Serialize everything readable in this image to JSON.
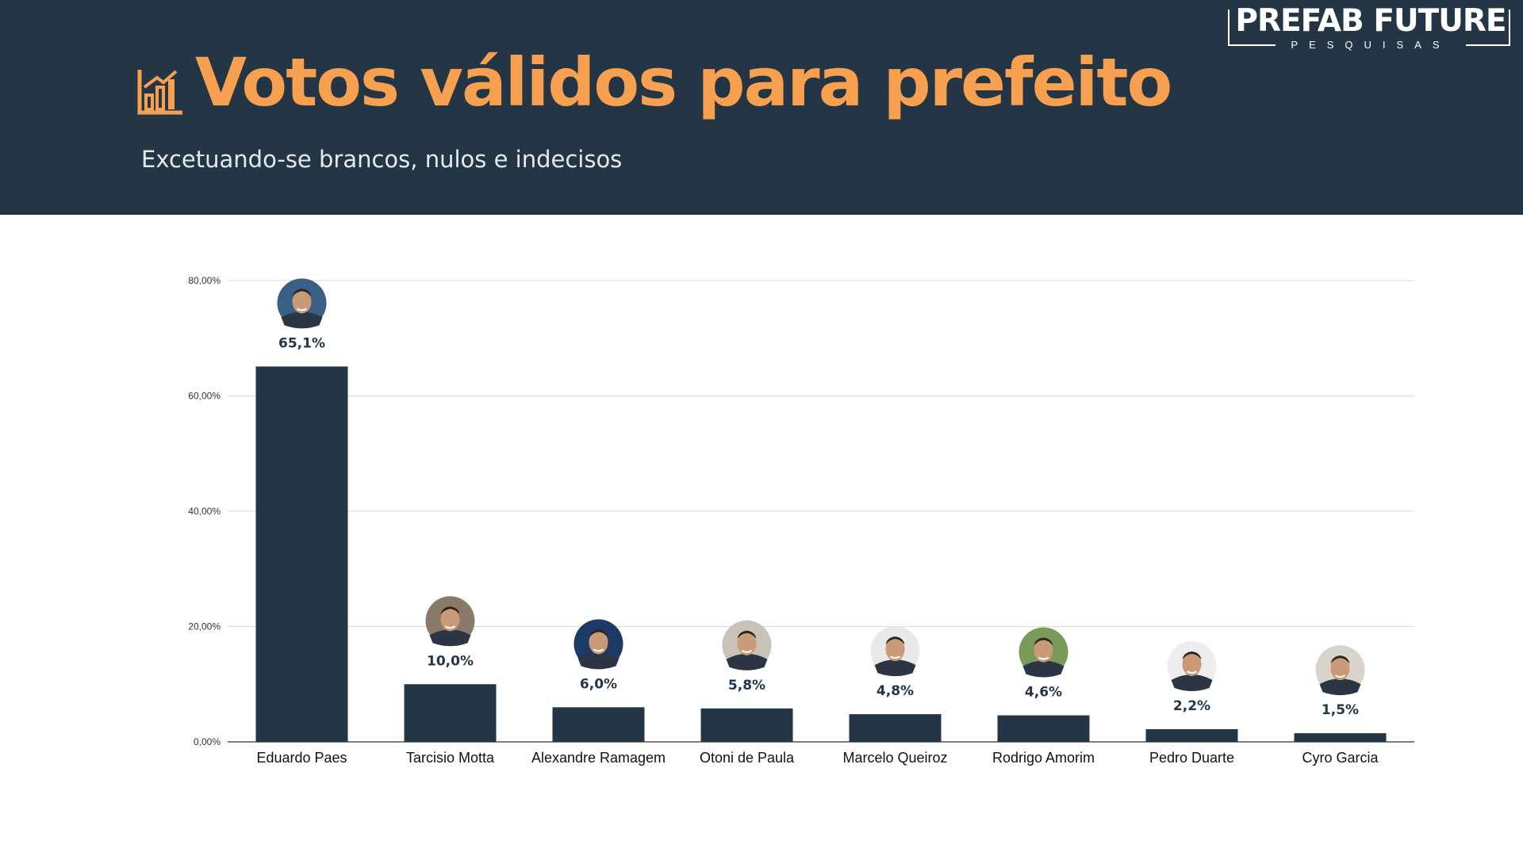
{
  "header": {
    "title": "Votos válidos para prefeito",
    "subtitle": "Excetuando-se brancos, nulos e indecisos",
    "icon": "bar-chart-icon",
    "logo_name": "PREFAB FUTURE",
    "logo_sub": "PESQUISAS"
  },
  "colors": {
    "header_bg": "#243646",
    "accent": "#f7a04f",
    "bar": "#243646",
    "grid": "#d9d9d9"
  },
  "chart_data": {
    "type": "bar",
    "title": "Votos válidos para prefeito",
    "subtitle": "Excetuando-se brancos, nulos e indecisos",
    "categories": [
      "Eduardo Paes",
      "Tarcisio Motta",
      "Alexandre Ramagem",
      "Otoni de Paula",
      "Marcelo Queiroz",
      "Rodrigo Amorim",
      "Pedro Duarte",
      "Cyro Garcia"
    ],
    "values": [
      65.1,
      10.0,
      6.0,
      5.8,
      4.8,
      4.6,
      2.2,
      1.5
    ],
    "value_labels": [
      "65,1%",
      "10,0%",
      "6,0%",
      "5,8%",
      "4,8%",
      "4,6%",
      "2,2%",
      "1,5%"
    ],
    "yticks": [
      0,
      20,
      40,
      60,
      80
    ],
    "ytick_labels": [
      "0,00%",
      "20,00%",
      "40,00%",
      "60,00%",
      "80,00%"
    ],
    "ylim": [
      0,
      80
    ],
    "grid": true,
    "legend": "none",
    "markers": "candidate-avatar-icon above each bar"
  }
}
